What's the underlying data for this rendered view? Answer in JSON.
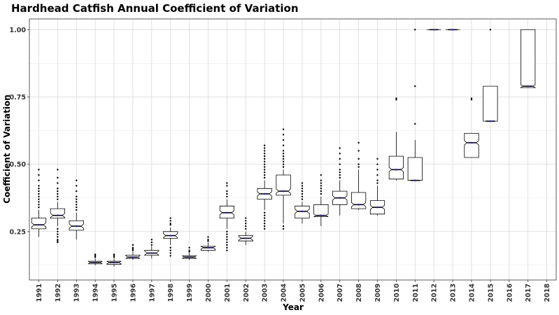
{
  "chart_data": {
    "type": "boxplot",
    "title": "Hardhead Catfish Annual Coefficient of Variation",
    "xlabel": "Year",
    "ylabel": "Coefficient of Variation",
    "ylim": [
      0.07,
      1.04
    ],
    "yticks": [
      0.25,
      0.5,
      0.75,
      1.0
    ],
    "ytick_labels": [
      "0.25",
      "0.50",
      "0.75",
      "1.00"
    ],
    "grid": true,
    "notched": true,
    "categories": [
      "1991",
      "1992",
      "1993",
      "1994",
      "1995",
      "1996",
      "1997",
      "1998",
      "1999",
      "2000",
      "2001",
      "2002",
      "2003",
      "2004",
      "2005",
      "2006",
      "2007",
      "2008",
      "2009",
      "2010",
      "2011",
      "2012",
      "2013",
      "2014",
      "2015",
      "2016",
      "2017",
      "2018"
    ],
    "boxes": [
      {
        "year": "1991",
        "lower": 0.23,
        "q1": 0.26,
        "median": 0.275,
        "q3": 0.3,
        "upper": 0.33,
        "outliers": [
          0.34,
          0.35,
          0.36,
          0.37,
          0.38,
          0.39,
          0.4,
          0.41,
          0.42,
          0.44,
          0.46,
          0.48
        ]
      },
      {
        "year": "1992",
        "lower": 0.27,
        "q1": 0.3,
        "median": 0.31,
        "q3": 0.335,
        "upper": 0.36,
        "outliers": [
          0.21,
          0.215,
          0.22,
          0.23,
          0.24,
          0.25,
          0.26,
          0.37,
          0.38,
          0.39,
          0.4,
          0.41,
          0.43,
          0.45,
          0.48
        ]
      },
      {
        "year": "1993",
        "lower": 0.22,
        "q1": 0.255,
        "median": 0.27,
        "q3": 0.29,
        "upper": 0.32,
        "outliers": [
          0.33,
          0.34,
          0.35,
          0.36,
          0.37,
          0.38,
          0.4,
          0.42,
          0.44
        ]
      },
      {
        "year": "1994",
        "lower": 0.125,
        "q1": 0.13,
        "median": 0.135,
        "q3": 0.14,
        "upper": 0.15,
        "outliers": [
          0.155,
          0.16,
          0.165
        ]
      },
      {
        "year": "1995",
        "lower": 0.12,
        "q1": 0.128,
        "median": 0.135,
        "q3": 0.14,
        "upper": 0.15,
        "outliers": [
          0.155,
          0.16,
          0.165
        ]
      },
      {
        "year": "1996",
        "lower": 0.145,
        "q1": 0.15,
        "median": 0.155,
        "q3": 0.162,
        "upper": 0.175,
        "outliers": [
          0.18,
          0.185,
          0.19,
          0.2
        ]
      },
      {
        "year": "1997",
        "lower": 0.15,
        "q1": 0.162,
        "median": 0.17,
        "q3": 0.18,
        "upper": 0.195,
        "outliers": [
          0.2,
          0.21,
          0.22
        ]
      },
      {
        "year": "1998",
        "lower": 0.2,
        "q1": 0.225,
        "median": 0.235,
        "q3": 0.25,
        "upper": 0.265,
        "outliers": [
          0.16,
          0.17,
          0.18,
          0.19,
          0.275,
          0.28,
          0.29,
          0.3
        ]
      },
      {
        "year": "1999",
        "lower": 0.145,
        "q1": 0.15,
        "median": 0.155,
        "q3": 0.16,
        "upper": 0.17,
        "outliers": [
          0.175,
          0.18,
          0.19
        ]
      },
      {
        "year": "2000",
        "lower": 0.175,
        "q1": 0.18,
        "median": 0.19,
        "q3": 0.195,
        "upper": 0.21,
        "outliers": [
          0.215,
          0.22,
          0.23
        ]
      },
      {
        "year": "2001",
        "lower": 0.26,
        "q1": 0.3,
        "median": 0.32,
        "q3": 0.345,
        "upper": 0.37,
        "outliers": [
          0.18,
          0.19,
          0.2,
          0.21,
          0.22,
          0.23,
          0.24,
          0.25,
          0.38,
          0.39,
          0.4,
          0.42,
          0.43
        ]
      },
      {
        "year": "2002",
        "lower": 0.2,
        "q1": 0.215,
        "median": 0.225,
        "q3": 0.235,
        "upper": 0.25,
        "outliers": [
          0.26,
          0.27,
          0.28,
          0.29,
          0.3
        ]
      },
      {
        "year": "2003",
        "lower": 0.33,
        "q1": 0.37,
        "median": 0.39,
        "q3": 0.41,
        "upper": 0.44,
        "outliers": [
          0.26,
          0.27,
          0.28,
          0.29,
          0.3,
          0.31,
          0.32,
          0.45,
          0.46,
          0.47,
          0.48,
          0.49,
          0.5,
          0.51,
          0.52,
          0.53,
          0.54,
          0.55,
          0.56,
          0.57
        ]
      },
      {
        "year": "2004",
        "lower": 0.28,
        "q1": 0.385,
        "median": 0.4,
        "q3": 0.46,
        "upper": 0.48,
        "outliers": [
          0.26,
          0.27,
          0.49,
          0.5,
          0.51,
          0.52,
          0.53,
          0.54,
          0.55,
          0.57,
          0.59,
          0.61,
          0.63
        ]
      },
      {
        "year": "2005",
        "lower": 0.28,
        "q1": 0.3,
        "median": 0.325,
        "q3": 0.345,
        "upper": 0.36,
        "outliers": [
          0.37,
          0.38,
          0.39,
          0.4,
          0.41,
          0.42,
          0.43
        ]
      },
      {
        "year": "2006",
        "lower": 0.27,
        "q1": 0.305,
        "median": 0.31,
        "q3": 0.35,
        "upper": 0.38,
        "outliers": [
          0.39,
          0.4,
          0.41,
          0.42,
          0.43,
          0.44,
          0.46
        ]
      },
      {
        "year": "2007",
        "lower": 0.31,
        "q1": 0.35,
        "median": 0.375,
        "q3": 0.4,
        "upper": 0.44,
        "outliers": [
          0.45,
          0.46,
          0.47,
          0.48,
          0.5,
          0.52,
          0.54,
          0.56
        ]
      },
      {
        "year": "2008",
        "lower": 0.33,
        "q1": 0.335,
        "median": 0.35,
        "q3": 0.395,
        "upper": 0.48,
        "outliers": [
          0.49,
          0.5,
          0.52,
          0.55,
          0.58
        ]
      },
      {
        "year": "2009",
        "lower": 0.31,
        "q1": 0.315,
        "median": 0.34,
        "q3": 0.365,
        "upper": 0.42,
        "outliers": [
          0.43,
          0.44,
          0.46,
          0.48,
          0.5,
          0.52
        ]
      },
      {
        "year": "2010",
        "lower": 0.44,
        "q1": 0.445,
        "median": 0.48,
        "q3": 0.53,
        "upper": 0.62,
        "outliers": [
          0.74,
          0.745
        ]
      },
      {
        "year": "2011",
        "lower": 0.44,
        "q1": 0.44,
        "median": 0.44,
        "q3": 0.525,
        "upper": 0.59,
        "outliers": [
          0.65,
          0.79,
          1.0
        ]
      },
      {
        "year": "2012",
        "lower": 1.0,
        "q1": 1.0,
        "median": 1.0,
        "q3": 1.0,
        "upper": 1.0,
        "outliers": []
      },
      {
        "year": "2013",
        "lower": 1.0,
        "q1": 1.0,
        "median": 1.0,
        "q3": 1.0,
        "upper": 1.0,
        "outliers": []
      },
      {
        "year": "2014",
        "lower": 0.525,
        "q1": 0.525,
        "median": 0.58,
        "q3": 0.615,
        "upper": 0.615,
        "outliers": [
          0.74,
          0.745
        ]
      },
      {
        "year": "2015",
        "lower": 0.66,
        "q1": 0.66,
        "median": 0.66,
        "q3": 0.79,
        "upper": 0.79,
        "outliers": [
          1.0
        ]
      },
      {
        "year": "2017",
        "lower": 0.785,
        "q1": 0.785,
        "median": 0.79,
        "q3": 1.0,
        "upper": 1.0,
        "outliers": []
      }
    ],
    "colors": {
      "mean_marker": "#2222cc",
      "box_fill": "#ffffff",
      "box_stroke": "#000000",
      "grid": "#d9d9d9",
      "panel_border": "#333333"
    }
  }
}
